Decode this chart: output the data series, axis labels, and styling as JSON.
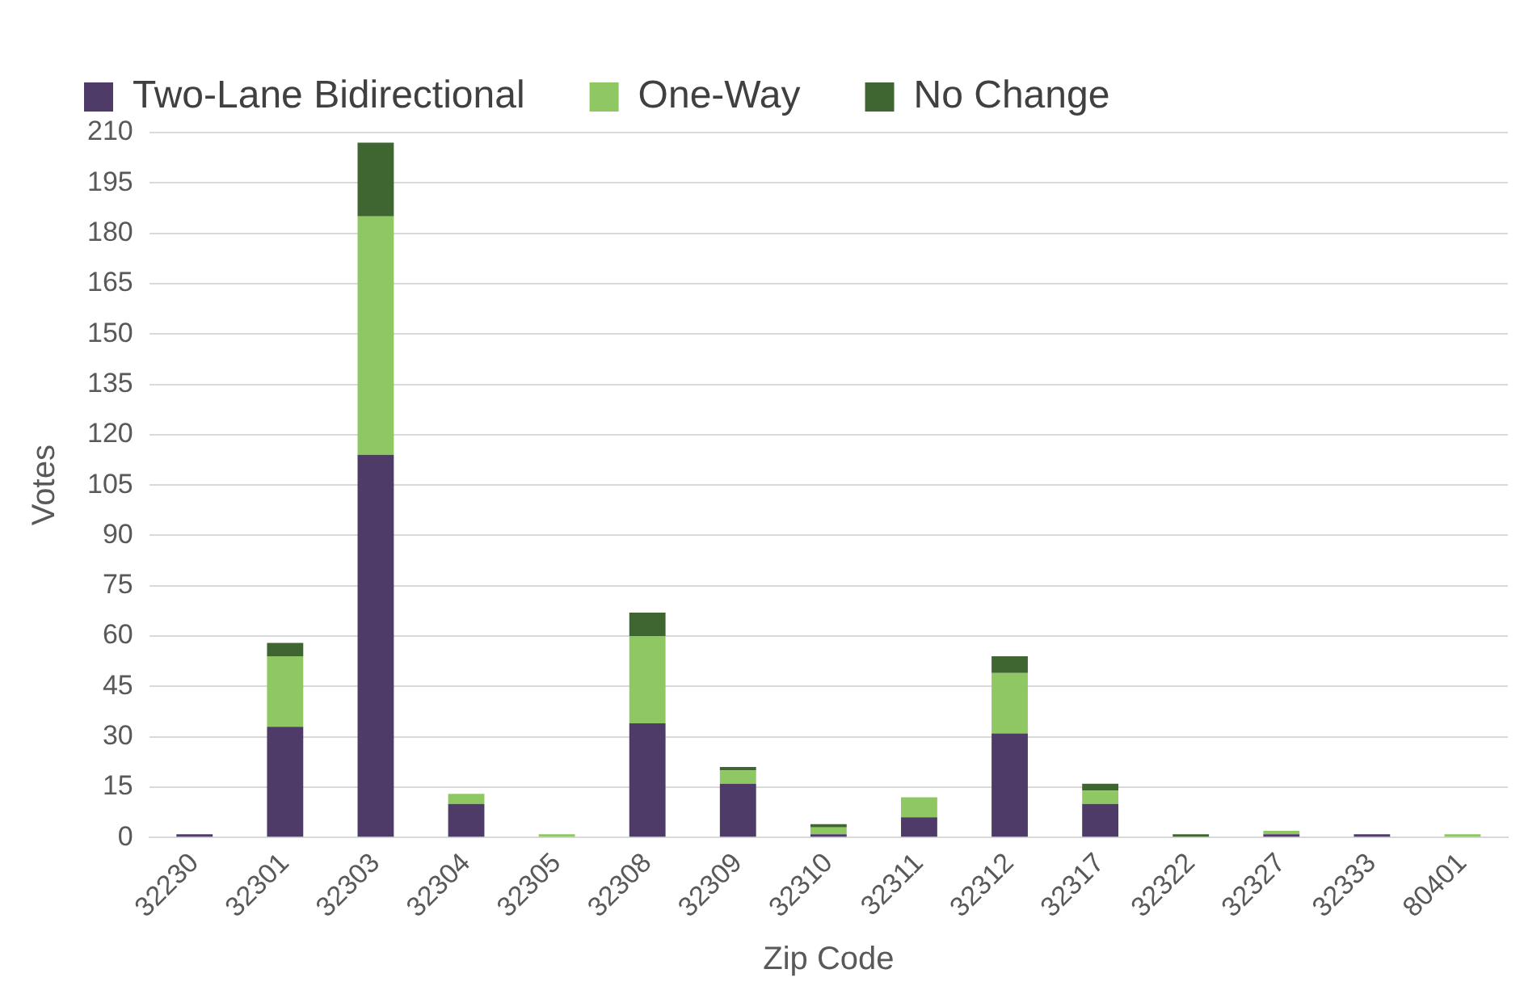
{
  "chart_data": {
    "type": "bar",
    "stacked": true,
    "xlabel": "Zip Code",
    "ylabel": "Votes",
    "categories": [
      "32230",
      "32301",
      "32303",
      "32304",
      "32305",
      "32308",
      "32309",
      "32310",
      "32311",
      "32312",
      "32317",
      "32322",
      "32327",
      "32333",
      "80401"
    ],
    "series": [
      {
        "name": "Two-Lane Bidirectional",
        "color": "#4f3b68",
        "values": [
          1,
          33,
          114,
          10,
          0,
          34,
          16,
          1,
          6,
          31,
          10,
          0,
          1,
          1,
          0
        ]
      },
      {
        "name": "One-Way",
        "color": "#8fc862",
        "values": [
          0,
          21,
          71,
          3,
          1,
          26,
          4,
          2,
          6,
          18,
          4,
          0,
          1,
          0,
          1
        ]
      },
      {
        "name": "No Change",
        "color": "#3f6630",
        "values": [
          0,
          4,
          22,
          0,
          0,
          7,
          1,
          1,
          0,
          5,
          2,
          1,
          0,
          0,
          0
        ]
      }
    ],
    "ylim": [
      0,
      210
    ],
    "yticks": [
      0,
      15,
      30,
      45,
      60,
      75,
      90,
      105,
      120,
      135,
      150,
      165,
      180,
      195,
      210
    ],
    "grid": "y",
    "legend": "top left"
  }
}
